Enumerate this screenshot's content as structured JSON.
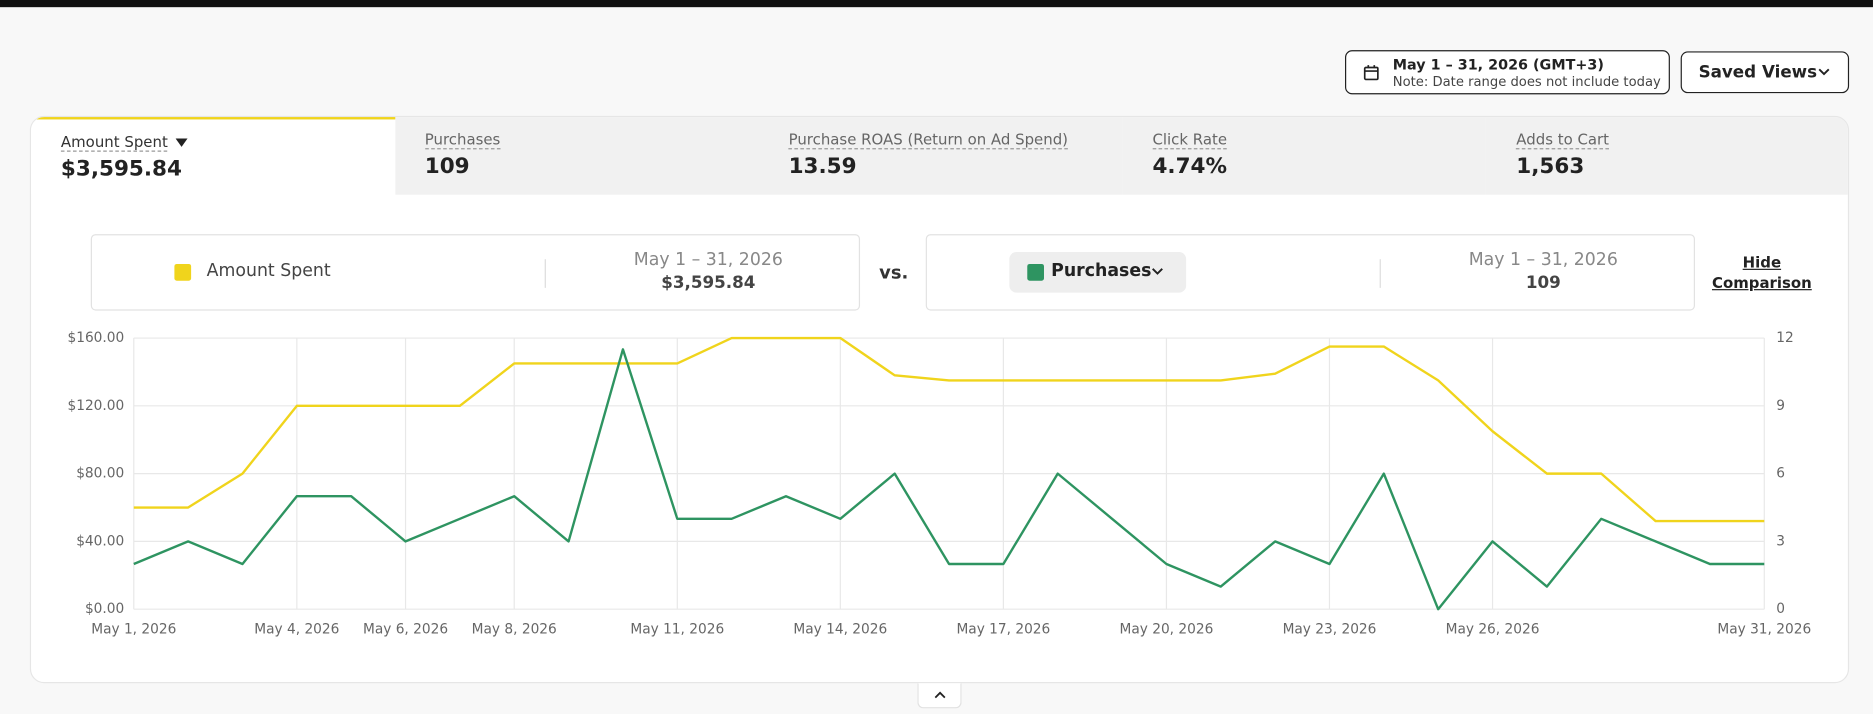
{
  "date_range": {
    "label": "May 1 – 31, 2026 (GMT+3)",
    "note": "Note: Date range does not include today"
  },
  "saved_views": "Saved Views",
  "tabs": [
    {
      "label": "Amount Spent",
      "value": "$3,595.84"
    },
    {
      "label": "Purchases",
      "value": "109"
    },
    {
      "label": "Purchase ROAS (Return on Ad Spend)",
      "value": "13.59"
    },
    {
      "label": "Click Rate",
      "value": "4.74%"
    },
    {
      "label": "Adds to Cart",
      "value": "1,563"
    }
  ],
  "comparison": {
    "primary": {
      "period": "May 1 – 31, 2026",
      "total": "$3,595.84"
    },
    "vs": "vs.",
    "secondary": {
      "period": "May 1 – 31, 2026",
      "total": "109"
    },
    "hide": "Hide Comparison"
  },
  "chart_data": {
    "type": "line",
    "x": [
      "2026-05-01",
      "2026-05-02",
      "2026-05-03",
      "2026-05-04",
      "2026-05-05",
      "2026-05-06",
      "2026-05-07",
      "2026-05-08",
      "2026-05-09",
      "2026-05-10",
      "2026-05-11",
      "2026-05-12",
      "2026-05-13",
      "2026-05-14",
      "2026-05-15",
      "2026-05-16",
      "2026-05-17",
      "2026-05-18",
      "2026-05-19",
      "2026-05-20",
      "2026-05-21",
      "2026-05-22",
      "2026-05-23",
      "2026-05-24",
      "2026-05-25",
      "2026-05-26",
      "2026-05-27",
      "2026-05-28",
      "2026-05-29",
      "2026-05-30",
      "2026-05-31"
    ],
    "xlim": [
      "2026-05-01",
      "2026-05-31"
    ],
    "xticks": [
      {
        "value": "2026-05-01",
        "label": "May 1, 2026"
      },
      {
        "value": "2026-05-04",
        "label": "May 4, 2026"
      },
      {
        "value": "2026-05-06",
        "label": "May 6, 2026"
      },
      {
        "value": "2026-05-08",
        "label": "May 8, 2026"
      },
      {
        "value": "2026-05-11",
        "label": "May 11, 2026"
      },
      {
        "value": "2026-05-14",
        "label": "May 14, 2026"
      },
      {
        "value": "2026-05-17",
        "label": "May 17, 2026"
      },
      {
        "value": "2026-05-20",
        "label": "May 20, 2026"
      },
      {
        "value": "2026-05-23",
        "label": "May 23, 2026"
      },
      {
        "value": "2026-05-26",
        "label": "May 26, 2026"
      },
      {
        "value": "2026-05-31",
        "label": "May 31, 2026"
      }
    ],
    "ylim": [
      0,
      160
    ],
    "yticks": [
      {
        "value": 0,
        "label": "$0.00"
      },
      {
        "value": 40,
        "label": "$40.00"
      },
      {
        "value": 80,
        "label": "$80.00"
      },
      {
        "value": 120,
        "label": "$120.00"
      },
      {
        "value": 160,
        "label": "$160.00"
      }
    ],
    "y2lim": [
      0,
      12
    ],
    "y2ticks": [
      0,
      3,
      6,
      9,
      12
    ],
    "grid": true,
    "series": [
      {
        "name": "Amount Spent",
        "color": "#f0d41c",
        "values": [
          60,
          60,
          80,
          120,
          120,
          120,
          120,
          145,
          145,
          145,
          145,
          160,
          160,
          160,
          138,
          135,
          135,
          135,
          135,
          135,
          135,
          139,
          155,
          155,
          135,
          105,
          80,
          80,
          52,
          52,
          52
        ]
      },
      {
        "name": "Purchases",
        "color": "#2e9461",
        "axis": "y2",
        "values": [
          2,
          3,
          2,
          5,
          5,
          3,
          4,
          5,
          3,
          11.5,
          4,
          4,
          5,
          4,
          6,
          2,
          2,
          6,
          4,
          2,
          1,
          3,
          2,
          6,
          0,
          3,
          1,
          4,
          3,
          2,
          2
        ]
      }
    ]
  }
}
